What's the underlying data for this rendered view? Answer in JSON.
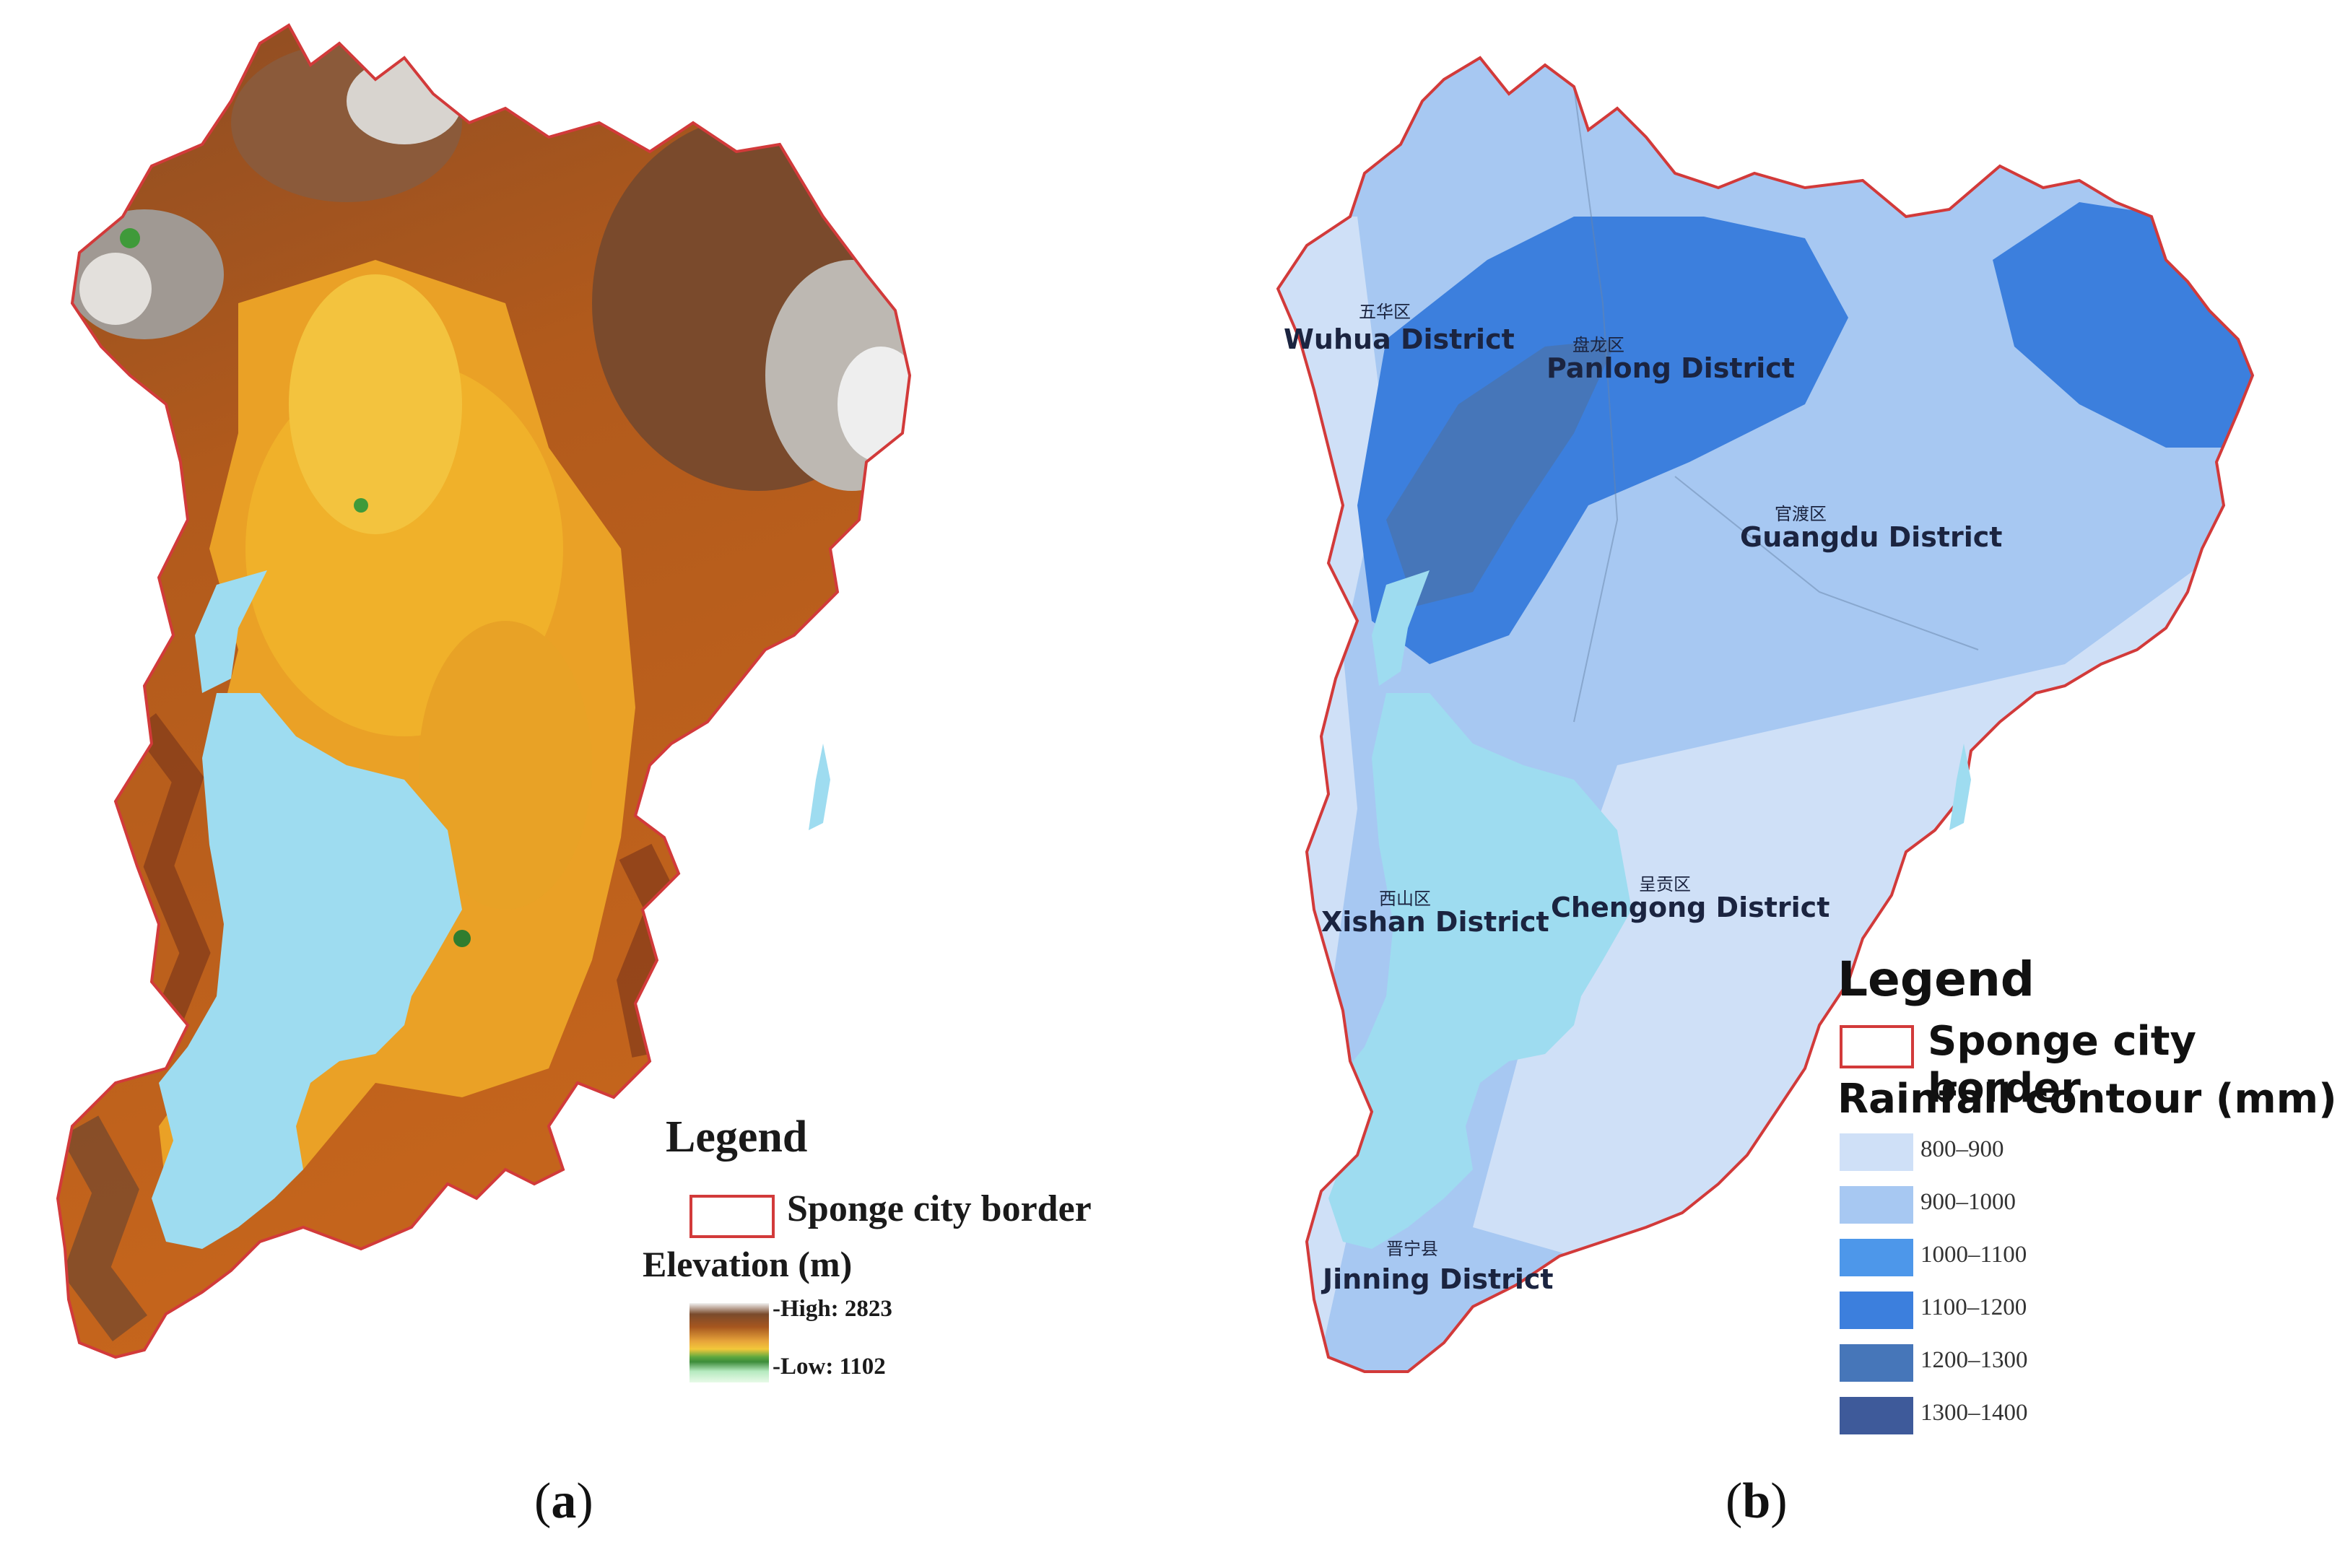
{
  "panel_a": {
    "caption_letter": "a",
    "legend": {
      "title": "Legend",
      "border_label": "Sponge city border",
      "elevation_title": "Elevation (m)",
      "high_label": "-High: 2823",
      "low_label": "-Low: 1102"
    }
  },
  "panel_b": {
    "caption_letter": "b",
    "districts": [
      {
        "name": "Wuhua District",
        "cn": "五华区"
      },
      {
        "name": "Panlong District",
        "cn": "盘龙区"
      },
      {
        "name": "Guangdu District",
        "cn": "官渡区"
      },
      {
        "name": "Xishan District",
        "cn": "西山区"
      },
      {
        "name": "Chengong District",
        "cn": "呈贡区"
      },
      {
        "name": "Jinning District",
        "cn": "晋宁县"
      }
    ],
    "legend": {
      "title": "Legend",
      "border_label": "Sponge city border",
      "rainfall_title": "Rainfall contour (mm)",
      "classes": [
        {
          "label": "800–900",
          "color": "#cfe0f7"
        },
        {
          "label": "900–1000",
          "color": "#a7c8f2"
        },
        {
          "label": "1000–1100",
          "color": "#4d97ea"
        },
        {
          "label": "1100–1200",
          "color": "#3c7fdd"
        },
        {
          "label": "1200–1300",
          "color": "#4676b9"
        },
        {
          "label": "1300–1400",
          "color": "#3e5a9a"
        }
      ]
    }
  },
  "colors": {
    "border": "#d23a3a",
    "lake": "#9edcf0"
  }
}
